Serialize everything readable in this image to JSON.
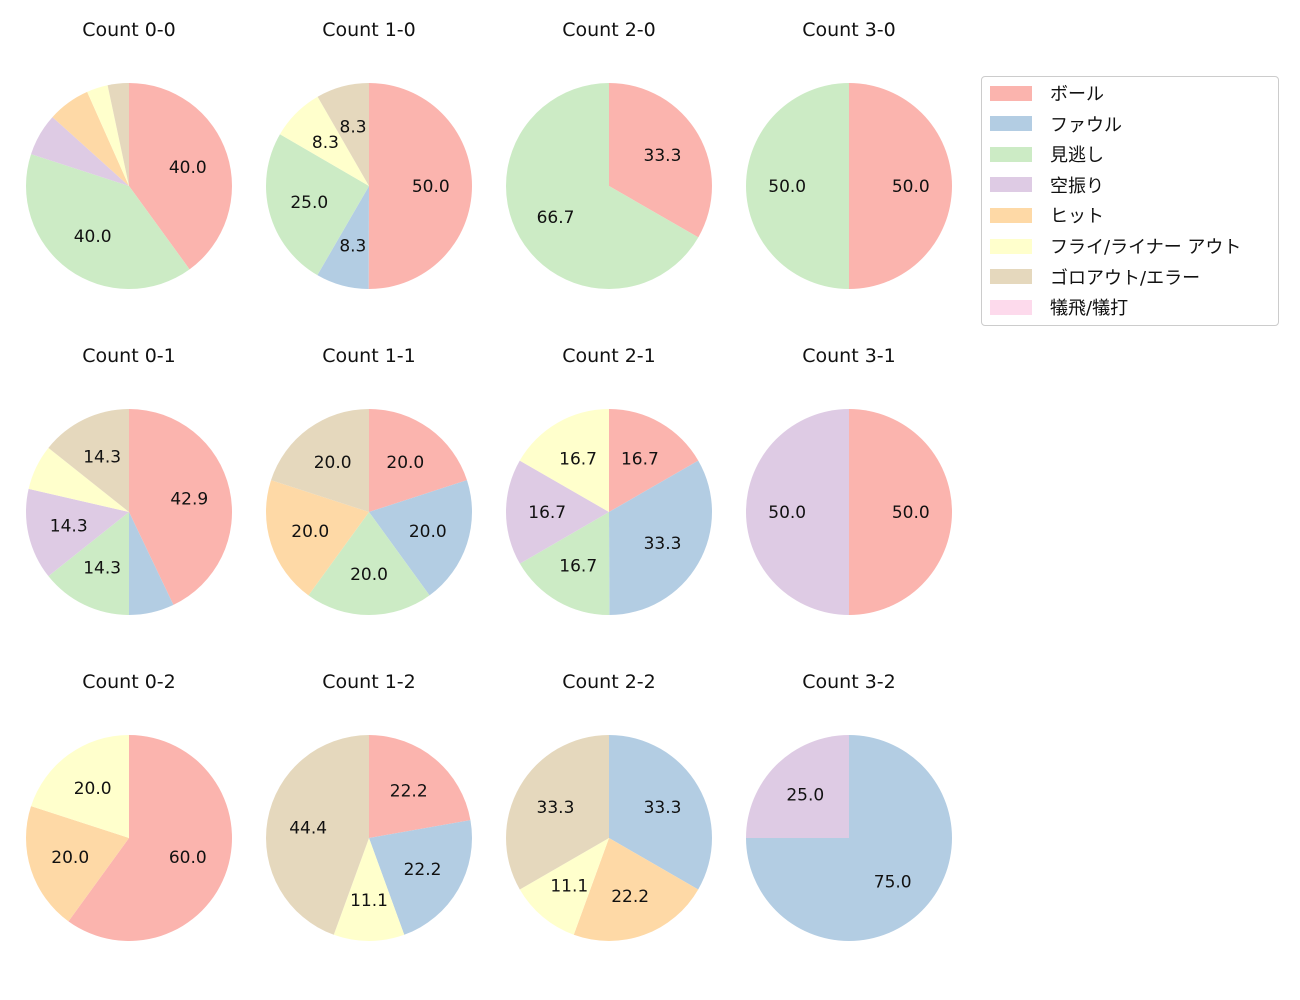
{
  "chart_data": {
    "type": "pie",
    "categories": [
      "ボール",
      "ファウル",
      "見逃し",
      "空振り",
      "ヒット",
      "フライ/ライナー アウト",
      "ゴロアウト/エラー",
      "犠飛/犠打"
    ],
    "colors": [
      "#fbb4ae",
      "#b3cde3",
      "#ccebc5",
      "#decbe4",
      "#fed9a6",
      "#ffffcc",
      "#e5d8bd",
      "#fddaec"
    ],
    "legend_position": "right",
    "charts": [
      {
        "title": "Count 0-0",
        "values": [
          40.0,
          0,
          40.0,
          6.67,
          6.67,
          3.33,
          3.33,
          0
        ]
      },
      {
        "title": "Count 1-0",
        "values": [
          50.0,
          8.3,
          25.0,
          0,
          0,
          8.3,
          8.3,
          0
        ]
      },
      {
        "title": "Count 2-0",
        "values": [
          33.3,
          0,
          66.7,
          0,
          0,
          0,
          0,
          0
        ]
      },
      {
        "title": "Count 3-0",
        "values": [
          50.0,
          0,
          50.0,
          0,
          0,
          0,
          0,
          0
        ]
      },
      {
        "title": "Count 0-1",
        "values": [
          42.9,
          7.1,
          14.3,
          14.3,
          0,
          7.1,
          14.3,
          0
        ]
      },
      {
        "title": "Count 1-1",
        "values": [
          20.0,
          20.0,
          20.0,
          0,
          20.0,
          0,
          20.0,
          0
        ]
      },
      {
        "title": "Count 2-1",
        "values": [
          16.7,
          33.3,
          16.7,
          16.7,
          0,
          16.7,
          0,
          0
        ]
      },
      {
        "title": "Count 3-1",
        "values": [
          50.0,
          0,
          0,
          50.0,
          0,
          0,
          0,
          0
        ]
      },
      {
        "title": "Count 0-2",
        "values": [
          60.0,
          0,
          0,
          0,
          20.0,
          20.0,
          0,
          0
        ]
      },
      {
        "title": "Count 1-2",
        "values": [
          22.2,
          22.2,
          0,
          0,
          0,
          11.1,
          44.4,
          0
        ]
      },
      {
        "title": "Count 2-2",
        "values": [
          0,
          33.3,
          0,
          0,
          22.2,
          11.1,
          33.3,
          0
        ]
      },
      {
        "title": "Count 3-2",
        "values": [
          0,
          75.0,
          0,
          25.0,
          0,
          0,
          0,
          0
        ]
      }
    ]
  }
}
